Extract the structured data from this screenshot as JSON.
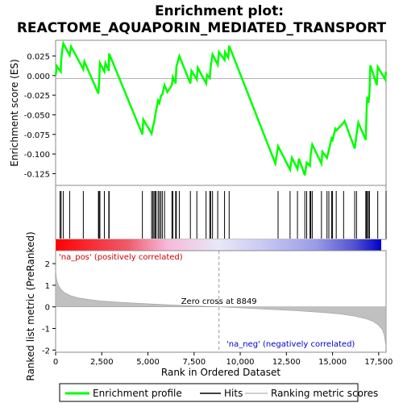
{
  "chart_data": {
    "type": "line",
    "title_line1": "Enrichment plot:",
    "title_line2": "REACTOME_AQUAPORIN_MEDIATED_TRANSPORT",
    "top_panel": {
      "ylabel": "Enrichment score (ES)",
      "ylim": [
        -0.14,
        0.045
      ],
      "yticks": [
        0.025,
        0.0,
        -0.025,
        -0.05,
        -0.075,
        -0.1,
        -0.125
      ],
      "ytick_labels": [
        "0.025",
        "0.000",
        "-0.025",
        "-0.050",
        "-0.075",
        "-0.100",
        "-0.125"
      ],
      "series": [
        {
          "name": "Enrichment profile",
          "color": "#00ff00",
          "x": [
            0,
            60,
            280,
            300,
            350,
            420,
            760,
            840,
            1500,
            1560,
            2320,
            2350,
            2400,
            2640,
            2700,
            2880,
            2900,
            4700,
            4750,
            5200,
            5270,
            5330,
            5400,
            5440,
            5550,
            5620,
            5700,
            5780,
            5900,
            6050,
            6300,
            6350,
            6500,
            6540,
            6700,
            7300,
            7360,
            7650,
            7700,
            8150,
            8200,
            8350,
            8400,
            8500,
            8780,
            8850,
            9150,
            9180,
            9350,
            9400,
            11900,
            12050,
            12700,
            12800,
            13100,
            13180,
            13500,
            13600,
            13780,
            13820,
            13900,
            14400,
            14450,
            14700,
            14800,
            14950,
            15000,
            15150,
            15200,
            15600,
            15650,
            16200,
            16300,
            16400,
            16800,
            16850,
            16880,
            16950,
            17000,
            17050,
            17400,
            17450,
            17850,
            17900
          ],
          "y": [
            0.0,
            0.012,
            0.005,
            0.02,
            0.03,
            0.041,
            0.026,
            0.037,
            0.008,
            0.018,
            -0.023,
            -0.012,
            0.016,
            0.005,
            0.016,
            0.006,
            0.028,
            -0.075,
            -0.056,
            -0.074,
            -0.065,
            -0.06,
            -0.05,
            -0.045,
            -0.032,
            -0.035,
            -0.026,
            -0.024,
            -0.012,
            -0.021,
            -0.012,
            -0.002,
            -0.01,
            0.011,
            0.025,
            -0.01,
            0.006,
            -0.005,
            0.01,
            -0.01,
            0.001,
            -0.003,
            0.012,
            0.027,
            0.014,
            0.03,
            0.02,
            0.03,
            0.023,
            0.038,
            -0.112,
            -0.09,
            -0.12,
            -0.105,
            -0.119,
            -0.106,
            -0.127,
            -0.111,
            -0.115,
            -0.1,
            -0.088,
            -0.112,
            -0.097,
            -0.105,
            -0.095,
            -0.08,
            -0.082,
            -0.068,
            -0.07,
            -0.06,
            -0.058,
            -0.093,
            -0.075,
            -0.06,
            -0.082,
            -0.043,
            -0.027,
            -0.035,
            -0.022,
            0.013,
            -0.012,
            0.011,
            -0.005,
            0.005
          ]
        }
      ],
      "hit_positions": [
        240,
        300,
        420,
        760,
        1500,
        2320,
        2350,
        2400,
        2640,
        2880,
        2900,
        4700,
        5200,
        5270,
        5330,
        5400,
        5440,
        5550,
        5620,
        5700,
        5780,
        5900,
        6300,
        6350,
        6500,
        6540,
        6700,
        7300,
        7650,
        8150,
        8350,
        8400,
        8500,
        8780,
        9150,
        9400,
        12050,
        12700,
        13100,
        13500,
        13600,
        13780,
        13820,
        13900,
        14400,
        14700,
        14800,
        14950,
        15000,
        15200,
        15600,
        16200,
        16300,
        16800,
        16850,
        16880,
        16950,
        17000,
        17450,
        17900
      ]
    },
    "bottom_panel": {
      "ylabel": "Ranked list metric (PreRanked)",
      "xlabel": "Rank in Ordered Dataset",
      "ylim": [
        -2.1,
        2.6
      ],
      "yticks": [
        2,
        1,
        0,
        -1,
        -2
      ],
      "ytick_labels": [
        "2",
        "1",
        "0",
        "-1",
        "-2"
      ],
      "metric_curve": {
        "x": [
          0,
          50,
          150,
          300,
          500,
          800,
          1200,
          1800,
          2500,
          3500,
          5000,
          6500,
          7500,
          8849,
          10000,
          11500,
          13000,
          14500,
          15500,
          16200,
          16800,
          17200,
          17500,
          17700,
          17800,
          17900
        ],
        "y": [
          1.7,
          1.3,
          1.0,
          0.8,
          0.65,
          0.52,
          0.42,
          0.34,
          0.27,
          0.21,
          0.14,
          0.08,
          0.04,
          0.0,
          -0.05,
          -0.11,
          -0.18,
          -0.26,
          -0.34,
          -0.43,
          -0.55,
          -0.68,
          -0.85,
          -1.05,
          -1.3,
          -1.85
        ]
      },
      "zero_cross_x": 8849,
      "zero_cross_label": "Zero cross at 8849",
      "pos_label": "'na_pos' (positively correlated)",
      "neg_label": "'na_neg' (negatively correlated)"
    },
    "xlim": [
      0,
      17900
    ],
    "xticks": [
      0,
      2500,
      5000,
      7500,
      10000,
      12500,
      15000,
      17500
    ],
    "xtick_labels": [
      "0",
      "2,500",
      "5,000",
      "7,500",
      "10,000",
      "12,500",
      "15,000",
      "17,500"
    ],
    "legend": {
      "placement": "bottom",
      "items": [
        {
          "label": "Enrichment profile",
          "color": "#00ff00"
        },
        {
          "label": "Hits",
          "color": "#000000"
        },
        {
          "label": "Ranking metric scores",
          "color": "#c0c0c0"
        }
      ]
    }
  }
}
